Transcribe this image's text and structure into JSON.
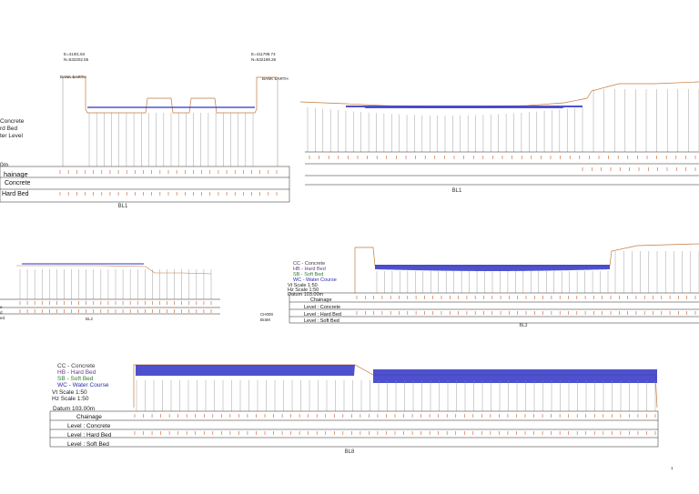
{
  "colors": {
    "water": "#2f33c6",
    "bank": "#c27a3e",
    "hard_bed": "#8a4fa0",
    "soft_bed": "#3d8a3d",
    "tick": "#c85a2a",
    "grid": "#888888"
  },
  "bl1_left": {
    "coord_left_e": "E=41I01.84",
    "coord_left_n": "N=532202.55",
    "coord_right_e": "E=411799.74",
    "coord_right_n": "N=532189.26",
    "bank_left": "BANK EARTH",
    "bank_right": "BANK EARTH",
    "legend": [
      "Concrete",
      "rd Bed",
      "ter Level"
    ],
    "datum": "0m",
    "rows": [
      "hainage",
      "Concrete",
      "Hard Bed"
    ],
    "caption": "BL1"
  },
  "bl1_right": {
    "caption": "BL1"
  },
  "bl2_left": {
    "caption": "BL2",
    "rows": [
      "e",
      "d",
      "ed"
    ],
    "side_top": "CH000",
    "side_bottom": "BraM"
  },
  "bl3": {
    "legend": [
      "CC - Concrete",
      "HB - Hard Bed",
      "SB - Soft Bed",
      "WC - Water Course"
    ],
    "vt_scale": "Vt Scale 1:50",
    "hz_scale": "Hz Scale 1:50",
    "datum": "Datum 103.00m",
    "rows": [
      "Chainage",
      "Level : Concrete",
      "Level : Hard Bed",
      "Level : Soft Bed"
    ],
    "caption": "BL3"
  },
  "bl8": {
    "legend": [
      "CC - Concrete",
      "HB - Hard Bed",
      "SB - Soft Bed",
      "WC - Water Course"
    ],
    "vt_scale": "Vt Scale 1:50",
    "hz_scale": "Hz Scale 1:50",
    "datum": "Datum 103.00m",
    "rows": [
      "Chainage",
      "Level : Concrete",
      "Level : Hard Bed",
      "Level : Soft Bed"
    ],
    "caption": "BL8"
  },
  "page_number": "1"
}
